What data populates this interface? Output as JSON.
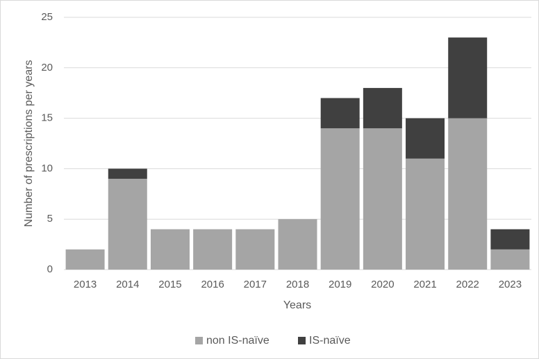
{
  "chart_data": {
    "type": "stacked-bar",
    "x_label": "Years",
    "y_label": "Number of prescriptions per years",
    "categories": [
      "2013",
      "2014",
      "2015",
      "2016",
      "2017",
      "2018",
      "2019",
      "2020",
      "2021",
      "2022",
      "2023"
    ],
    "series": [
      {
        "name": "non IS-naïve",
        "color": "#a5a5a5",
        "values": [
          2,
          9,
          4,
          4,
          4,
          5,
          14,
          14,
          11,
          15,
          2
        ]
      },
      {
        "name": "IS-naïve",
        "color": "#404040",
        "values": [
          0,
          1,
          0,
          0,
          0,
          0,
          3,
          4,
          4,
          8,
          2
        ]
      }
    ],
    "ylim": [
      0,
      25
    ],
    "yticks": [
      0,
      5,
      10,
      15,
      20,
      25
    ],
    "grid": true,
    "legend": "bottom"
  }
}
